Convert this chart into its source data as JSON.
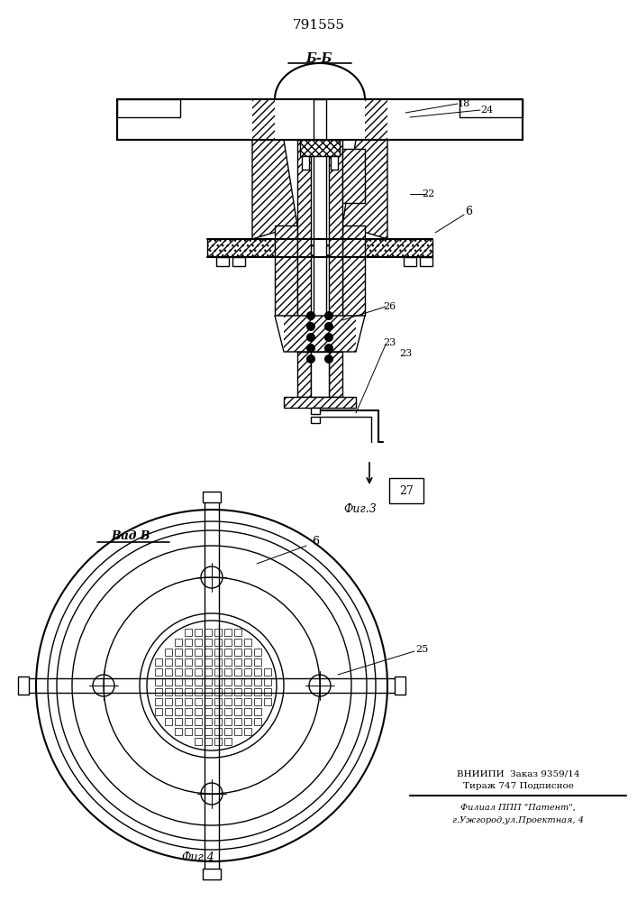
{
  "patent_number": "791555",
  "bg_color": "#ffffff",
  "line_color": "#000000",
  "fig3_label": "Фиг.3",
  "fig4_label": "Фиг.4",
  "section_label": "Б-Б",
  "view_label": "Вид В",
  "footer_line1": "ВНИИПИ  Заказ 9359/14",
  "footer_line2": "Тираж 747 Подписное",
  "footer_line3": "Филиал ППП \"Патент\",",
  "footer_line4": "г.Ужгород,ул.Проектная, 4"
}
